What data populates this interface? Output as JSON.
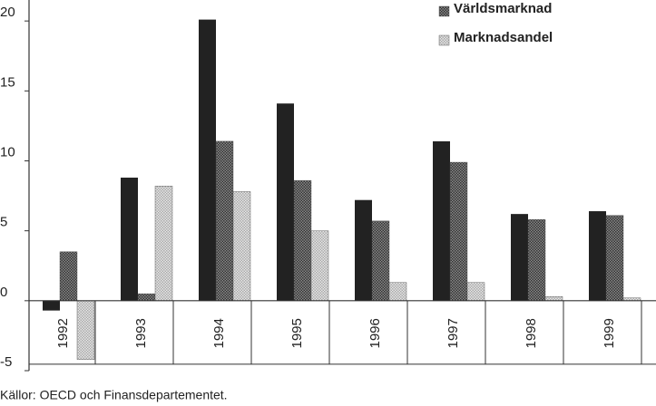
{
  "chart_data": {
    "type": "bar",
    "categories": [
      "1992",
      "1993",
      "1994",
      "1995",
      "1996",
      "1997",
      "1998",
      "1999"
    ],
    "series": [
      {
        "color": "#222222",
        "values": [
          -0.7,
          8.8,
          20.1,
          14.1,
          7.2,
          11.4,
          6.2,
          6.4
        ]
      },
      {
        "name": "Världsmarknad",
        "color": "#5a5a5a",
        "values": [
          3.5,
          0.5,
          11.4,
          8.6,
          5.7,
          9.9,
          5.8,
          6.1
        ]
      },
      {
        "name": "Marknadsandel",
        "color": "#c4c4c4",
        "values": [
          -4.2,
          8.2,
          7.8,
          5.0,
          1.3,
          1.3,
          0.3,
          0.2
        ]
      }
    ],
    "ylim": [
      -5,
      21.5
    ],
    "yticks": [
      -5,
      0,
      5,
      10,
      15,
      20
    ],
    "grid": false,
    "legend": "upper right",
    "source": "Källor: OECD och Finansdepartementet."
  }
}
